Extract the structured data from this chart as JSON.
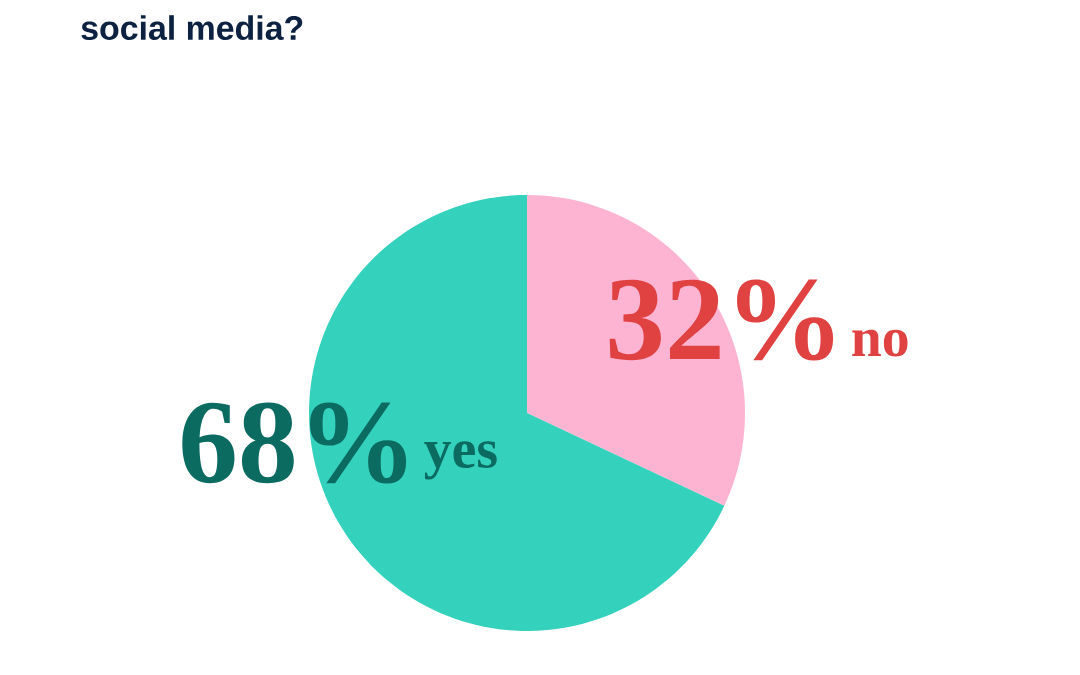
{
  "chart_data": {
    "type": "pie",
    "title": "social media?",
    "categories": [
      "no",
      "yes"
    ],
    "values": [
      32,
      68
    ],
    "value_labels": [
      "32%",
      "68%"
    ],
    "colors": [
      "#fdb4d2",
      "#34d1bd"
    ],
    "legend": false
  }
}
